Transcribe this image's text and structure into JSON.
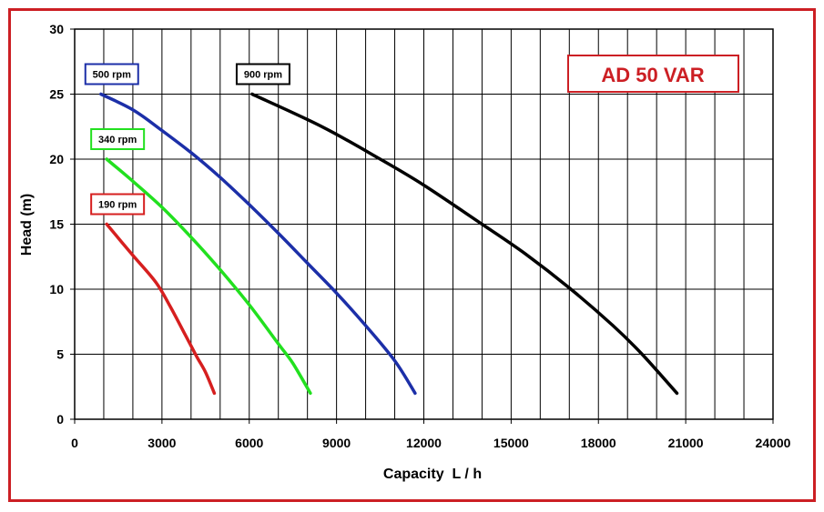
{
  "colors": {
    "frame": "#cc1f24",
    "grid": "#000000",
    "title_box": "#cc1f24",
    "title_text": "#cc1f24"
  },
  "chart_data": {
    "type": "line",
    "title": "AD 50 VAR",
    "xlabel": "Capacity  L / h",
    "ylabel": "Head (m)",
    "xlim": [
      0,
      24000
    ],
    "ylim": [
      0,
      30
    ],
    "x_ticks": [
      "0",
      "3000",
      "6000",
      "9000",
      "12000",
      "15000",
      "18000",
      "21000",
      "24000"
    ],
    "y_ticks": [
      "0",
      "5",
      "10",
      "15",
      "20",
      "25",
      "30"
    ],
    "grid": true,
    "series": [
      {
        "name": "500 rpm",
        "color": "#1c2fa8",
        "points": [
          [
            900,
            25
          ],
          [
            2000,
            23.8
          ],
          [
            3000,
            22.2
          ],
          [
            4000,
            20.5
          ],
          [
            5000,
            18.6
          ],
          [
            6000,
            16.5
          ],
          [
            7000,
            14.3
          ],
          [
            8000,
            12.0
          ],
          [
            9000,
            9.7
          ],
          [
            10000,
            7.2
          ],
          [
            11000,
            4.5
          ],
          [
            11700,
            2
          ]
        ]
      },
      {
        "name": "340 rpm",
        "color": "#22e01f",
        "points": [
          [
            1100,
            20
          ],
          [
            2000,
            18.3
          ],
          [
            3000,
            16.3
          ],
          [
            4000,
            14.0
          ],
          [
            5000,
            11.5
          ],
          [
            6000,
            8.8
          ],
          [
            7000,
            5.8
          ],
          [
            7500,
            4.3
          ],
          [
            8100,
            2
          ]
        ]
      },
      {
        "name": "190 rpm",
        "color": "#d61f1f",
        "points": [
          [
            1100,
            15
          ],
          [
            2000,
            12.6
          ],
          [
            2800,
            10.5
          ],
          [
            3300,
            8.6
          ],
          [
            3800,
            6.5
          ],
          [
            4200,
            4.8
          ],
          [
            4500,
            3.6
          ],
          [
            4800,
            2
          ]
        ]
      },
      {
        "name": "900 rpm",
        "color": "#000000",
        "points": [
          [
            6100,
            25
          ],
          [
            8500,
            22.5
          ],
          [
            10500,
            20.0
          ],
          [
            12000,
            18.0
          ],
          [
            14000,
            15.0
          ],
          [
            15500,
            12.7
          ],
          [
            17000,
            10.1
          ],
          [
            18500,
            7.2
          ],
          [
            19500,
            5.0
          ],
          [
            20700,
            2
          ]
        ]
      }
    ]
  }
}
